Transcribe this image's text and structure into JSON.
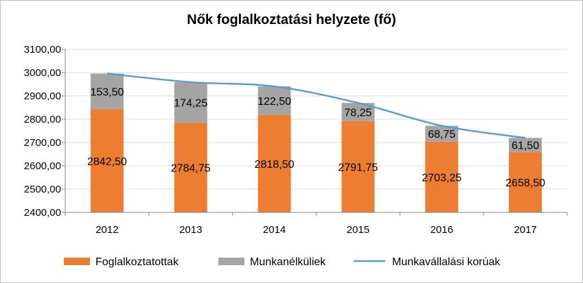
{
  "chart_data": {
    "type": "bar",
    "title": "Nők foglalkoztatási helyzete (fő)",
    "categories": [
      "2012",
      "2013",
      "2014",
      "2015",
      "2016",
      "2017"
    ],
    "series": [
      {
        "name": "Foglalkoztatottak",
        "kind": "stacked-bar",
        "color": "#ed7d31",
        "values": [
          2842.5,
          2784.75,
          2818.5,
          2791.75,
          2703.25,
          2658.5
        ],
        "labels": [
          "2842,50",
          "2784,75",
          "2818,50",
          "2791,75",
          "2703,25",
          "2658,50"
        ]
      },
      {
        "name": "Munkanélküliek",
        "kind": "stacked-bar",
        "color": "#a5a5a5",
        "values": [
          153.5,
          174.25,
          122.5,
          78.25,
          68.75,
          61.5
        ],
        "labels": [
          "153,50",
          "174,25",
          "122,50",
          "78,25",
          "68,75",
          "61,50"
        ]
      },
      {
        "name": "Munkavállalási korúak",
        "kind": "line",
        "color": "#5b9bd5",
        "values": [
          2996.0,
          2959.0,
          2941.0,
          2870.0,
          2772.0,
          2720.0
        ]
      }
    ],
    "ylim": [
      2400,
      3100
    ],
    "yticks": [
      "2400,00",
      "2500,00",
      "2600,00",
      "2700,00",
      "2800,00",
      "2900,00",
      "3000,00",
      "3100,00"
    ],
    "grid": true,
    "legend": "bottom"
  }
}
